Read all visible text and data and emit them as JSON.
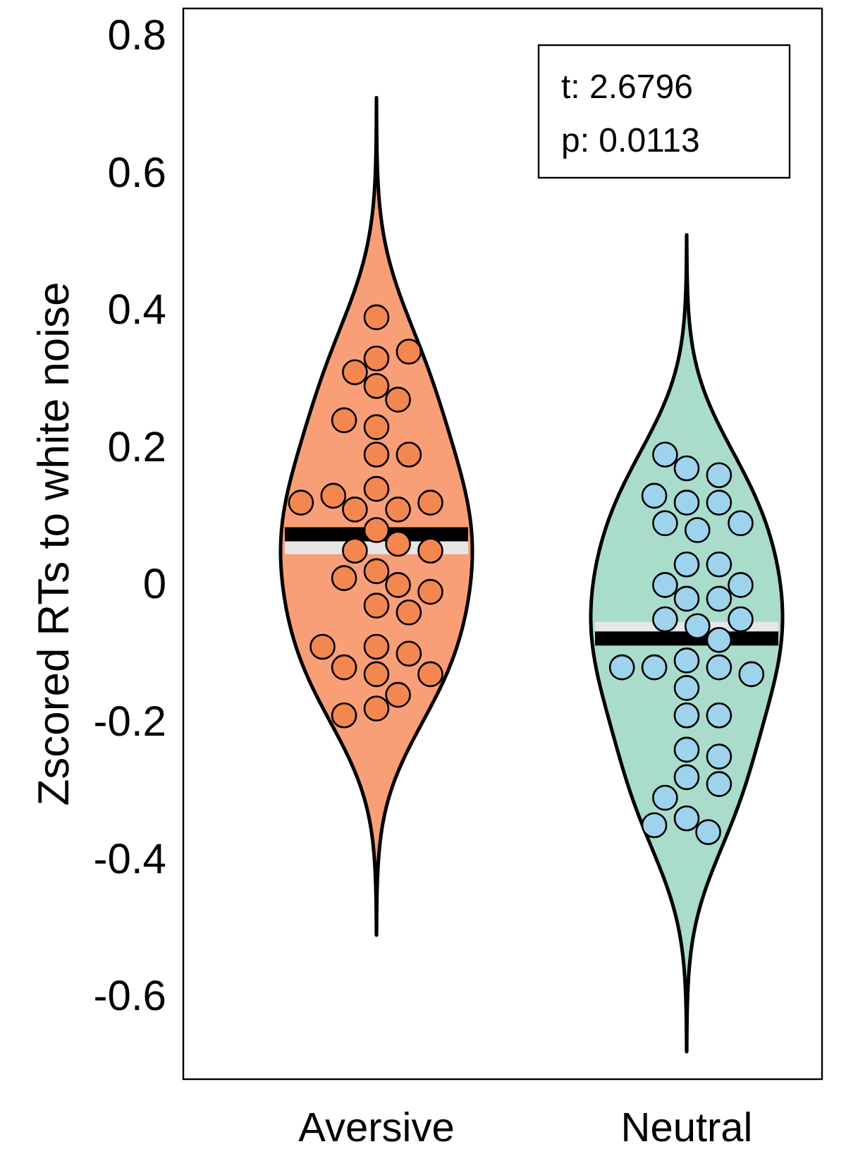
{
  "chart_data": {
    "type": "scatter",
    "ylabel": "Zscored RTs to white noise",
    "categories": [
      "Aversive",
      "Neutral"
    ],
    "ylim": [
      -0.72,
      0.84
    ],
    "yticks": [
      -0.6,
      -0.4,
      -0.2,
      0,
      0.2,
      0.4,
      0.6,
      0.8
    ],
    "colors": [
      "#f99f78",
      "#a9dcca"
    ],
    "marker": "circle",
    "annotations": [
      "t: 2.6796",
      "p: 0.0113"
    ],
    "ref_lines": [
      {
        "axis": "y",
        "value": 0.055,
        "color": "#e6e6e6"
      },
      {
        "axis": "y",
        "value": -0.064,
        "color": "#e6e6e6"
      },
      {
        "axis": "y",
        "value": 0.074,
        "color": "#000000"
      },
      {
        "axis": "y",
        "value": -0.078,
        "color": "#000000"
      }
    ],
    "series": [
      {
        "color": "#f4874f",
        "x": [
          "Aversive",
          "Aversive",
          "Aversive",
          "Aversive",
          "Aversive",
          "Aversive",
          "Aversive",
          "Aversive",
          "Aversive",
          "Aversive",
          "Aversive",
          "Aversive",
          "Aversive",
          "Aversive",
          "Aversive",
          "Aversive",
          "Aversive",
          "Aversive",
          "Aversive",
          "Aversive",
          "Aversive",
          "Aversive",
          "Aversive",
          "Aversive",
          "Aversive",
          "Aversive",
          "Aversive",
          "Aversive",
          "Aversive",
          "Aversive",
          "Aversive",
          "Aversive",
          "Aversive",
          "Aversive",
          "Aversive"
        ],
        "values": [
          0.39,
          0.33,
          0.34,
          0.31,
          0.29,
          0.27,
          0.23,
          0.24,
          0.19,
          0.19,
          0.14,
          0.11,
          0.11,
          0.12,
          0.13,
          0.12,
          0.08,
          0.06,
          0.05,
          0.05,
          0.02,
          0.0,
          0.01,
          -0.01,
          -0.03,
          -0.04,
          -0.09,
          -0.1,
          -0.13,
          -0.12,
          -0.09,
          -0.13,
          -0.16,
          -0.18,
          -0.19
        ]
      },
      {
        "color": "#9dd3ec",
        "x": [
          "Neutral",
          "Neutral",
          "Neutral",
          "Neutral",
          "Neutral",
          "Neutral",
          "Neutral",
          "Neutral",
          "Neutral",
          "Neutral",
          "Neutral",
          "Neutral",
          "Neutral",
          "Neutral",
          "Neutral",
          "Neutral",
          "Neutral",
          "Neutral",
          "Neutral",
          "Neutral",
          "Neutral",
          "Neutral",
          "Neutral",
          "Neutral",
          "Neutral",
          "Neutral",
          "Neutral",
          "Neutral",
          "Neutral",
          "Neutral",
          "Neutral",
          "Neutral",
          "Neutral",
          "Neutral",
          "Neutral"
        ],
        "values": [
          0.17,
          0.16,
          0.19,
          0.12,
          0.12,
          0.13,
          0.09,
          0.09,
          0.08,
          0.03,
          0.03,
          0.0,
          0.0,
          -0.02,
          -0.02,
          -0.05,
          -0.06,
          -0.05,
          -0.08,
          -0.11,
          -0.12,
          -0.12,
          -0.13,
          -0.12,
          -0.15,
          -0.19,
          -0.19,
          -0.24,
          -0.25,
          -0.28,
          -0.29,
          -0.31,
          -0.34,
          -0.36,
          -0.35
        ]
      }
    ]
  }
}
